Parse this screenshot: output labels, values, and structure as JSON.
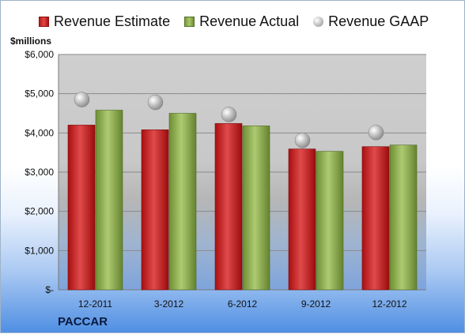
{
  "chart_data": {
    "type": "bar",
    "title": "",
    "ylabel": "$millions",
    "xlabel": "",
    "company": "PACCAR",
    "categories": [
      "12-2011",
      "3-2012",
      "6-2012",
      "9-2012",
      "12-2012"
    ],
    "series": [
      {
        "name": "Revenue Estimate",
        "kind": "bar",
        "color": "#c8191a",
        "values": [
          4200,
          4080,
          4240,
          3590,
          3650
        ]
      },
      {
        "name": "Revenue Actual",
        "kind": "bar",
        "color": "#8caf4d",
        "values": [
          4580,
          4500,
          4180,
          3530,
          3690
        ]
      },
      {
        "name": "Revenue GAAP",
        "kind": "marker",
        "color": "#b3b3b3",
        "values": [
          4850,
          4780,
          4470,
          3810,
          4010
        ]
      }
    ],
    "ylim": [
      0,
      6000
    ],
    "yticks": [
      0,
      1000,
      2000,
      3000,
      4000,
      5000,
      6000
    ],
    "ytick_labels": [
      "$-",
      "$1,000",
      "$2,000",
      "$3,000",
      "$4,000",
      "$5,000",
      "$6,000"
    ],
    "grid": true,
    "legend_position": "top"
  }
}
